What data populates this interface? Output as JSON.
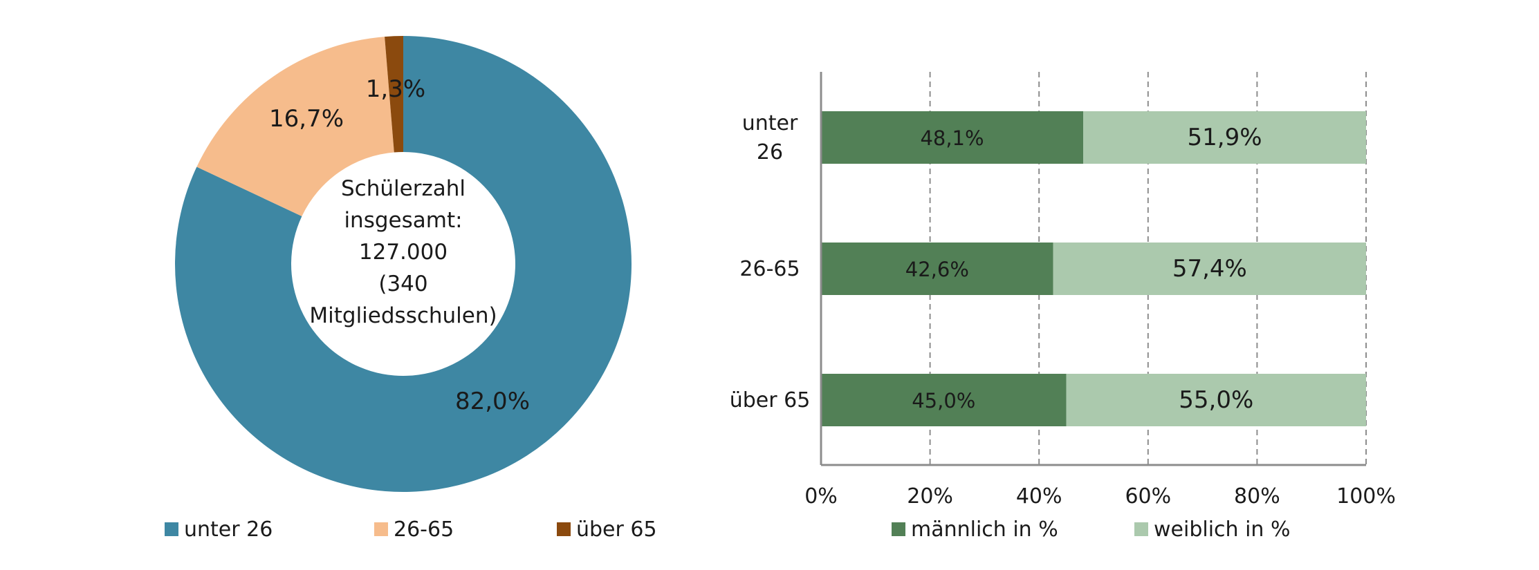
{
  "chart_data": [
    {
      "type": "pie",
      "title": "",
      "center_label": [
        "Schülerzahl",
        "insgesamt:",
        "127.000",
        "(340",
        "Mitgliedsschulen)"
      ],
      "categories": [
        "unter 26",
        "26-65",
        "über 65"
      ],
      "values": [
        82.0,
        16.7,
        1.3
      ],
      "value_labels": [
        "82,0%",
        "16,7%",
        "1,3%"
      ],
      "colors": [
        "#3e87a3",
        "#f6bc8c",
        "#8b4a0e"
      ],
      "legend": "bottom"
    },
    {
      "type": "bar",
      "orientation": "horizontal",
      "stacked": "percent",
      "categories": [
        [
          "unter",
          "26"
        ],
        [
          "26-65"
        ],
        [
          "über 65"
        ]
      ],
      "series": [
        {
          "name": "männlich in %",
          "values": [
            48.1,
            42.6,
            45.0
          ],
          "labels": [
            "48,1%",
            "42,6%",
            "45,0%"
          ],
          "color": "#528056"
        },
        {
          "name": "weiblich in %",
          "values": [
            51.9,
            57.4,
            55.0
          ],
          "labels": [
            "51,9%",
            "57,4%",
            "55,0%"
          ],
          "color": "#abc9ad"
        }
      ],
      "xticks": [
        "0%",
        "20%",
        "40%",
        "60%",
        "80%",
        "100%"
      ],
      "xlim": [
        0,
        100
      ],
      "grid": "vertical dashed",
      "legend": "bottom"
    }
  ]
}
